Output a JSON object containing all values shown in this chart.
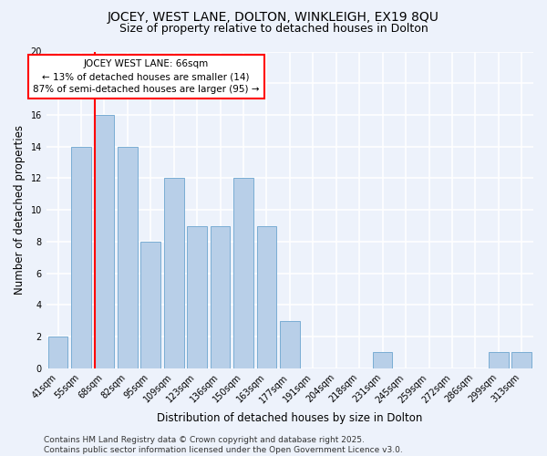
{
  "title": "JOCEY, WEST LANE, DOLTON, WINKLEIGH, EX19 8QU",
  "subtitle": "Size of property relative to detached houses in Dolton",
  "xlabel": "Distribution of detached houses by size in Dolton",
  "ylabel": "Number of detached properties",
  "categories": [
    "41sqm",
    "55sqm",
    "68sqm",
    "82sqm",
    "95sqm",
    "109sqm",
    "123sqm",
    "136sqm",
    "150sqm",
    "163sqm",
    "177sqm",
    "191sqm",
    "204sqm",
    "218sqm",
    "231sqm",
    "245sqm",
    "259sqm",
    "272sqm",
    "286sqm",
    "299sqm",
    "313sqm"
  ],
  "values": [
    2,
    14,
    16,
    14,
    8,
    12,
    9,
    9,
    12,
    9,
    3,
    0,
    0,
    0,
    1,
    0,
    0,
    0,
    0,
    1,
    1
  ],
  "bar_color": "#b8cfe8",
  "bar_edge_color": "#7aadd4",
  "vline_color": "red",
  "annotation_line1": "JOCEY WEST LANE: 66sqm",
  "annotation_line2": "← 13% of detached houses are smaller (14)",
  "annotation_line3": "87% of semi-detached houses are larger (95) →",
  "annotation_box_color": "white",
  "annotation_box_edge_color": "red",
  "ylim": [
    0,
    20
  ],
  "yticks": [
    0,
    2,
    4,
    6,
    8,
    10,
    12,
    14,
    16,
    18,
    20
  ],
  "footnote": "Contains HM Land Registry data © Crown copyright and database right 2025.\nContains public sector information licensed under the Open Government Licence v3.0.",
  "background_color": "#edf2fb",
  "grid_color": "white",
  "title_fontsize": 10,
  "subtitle_fontsize": 9,
  "axis_label_fontsize": 8.5,
  "tick_fontsize": 7,
  "annotation_fontsize": 7.5,
  "footnote_fontsize": 6.5
}
